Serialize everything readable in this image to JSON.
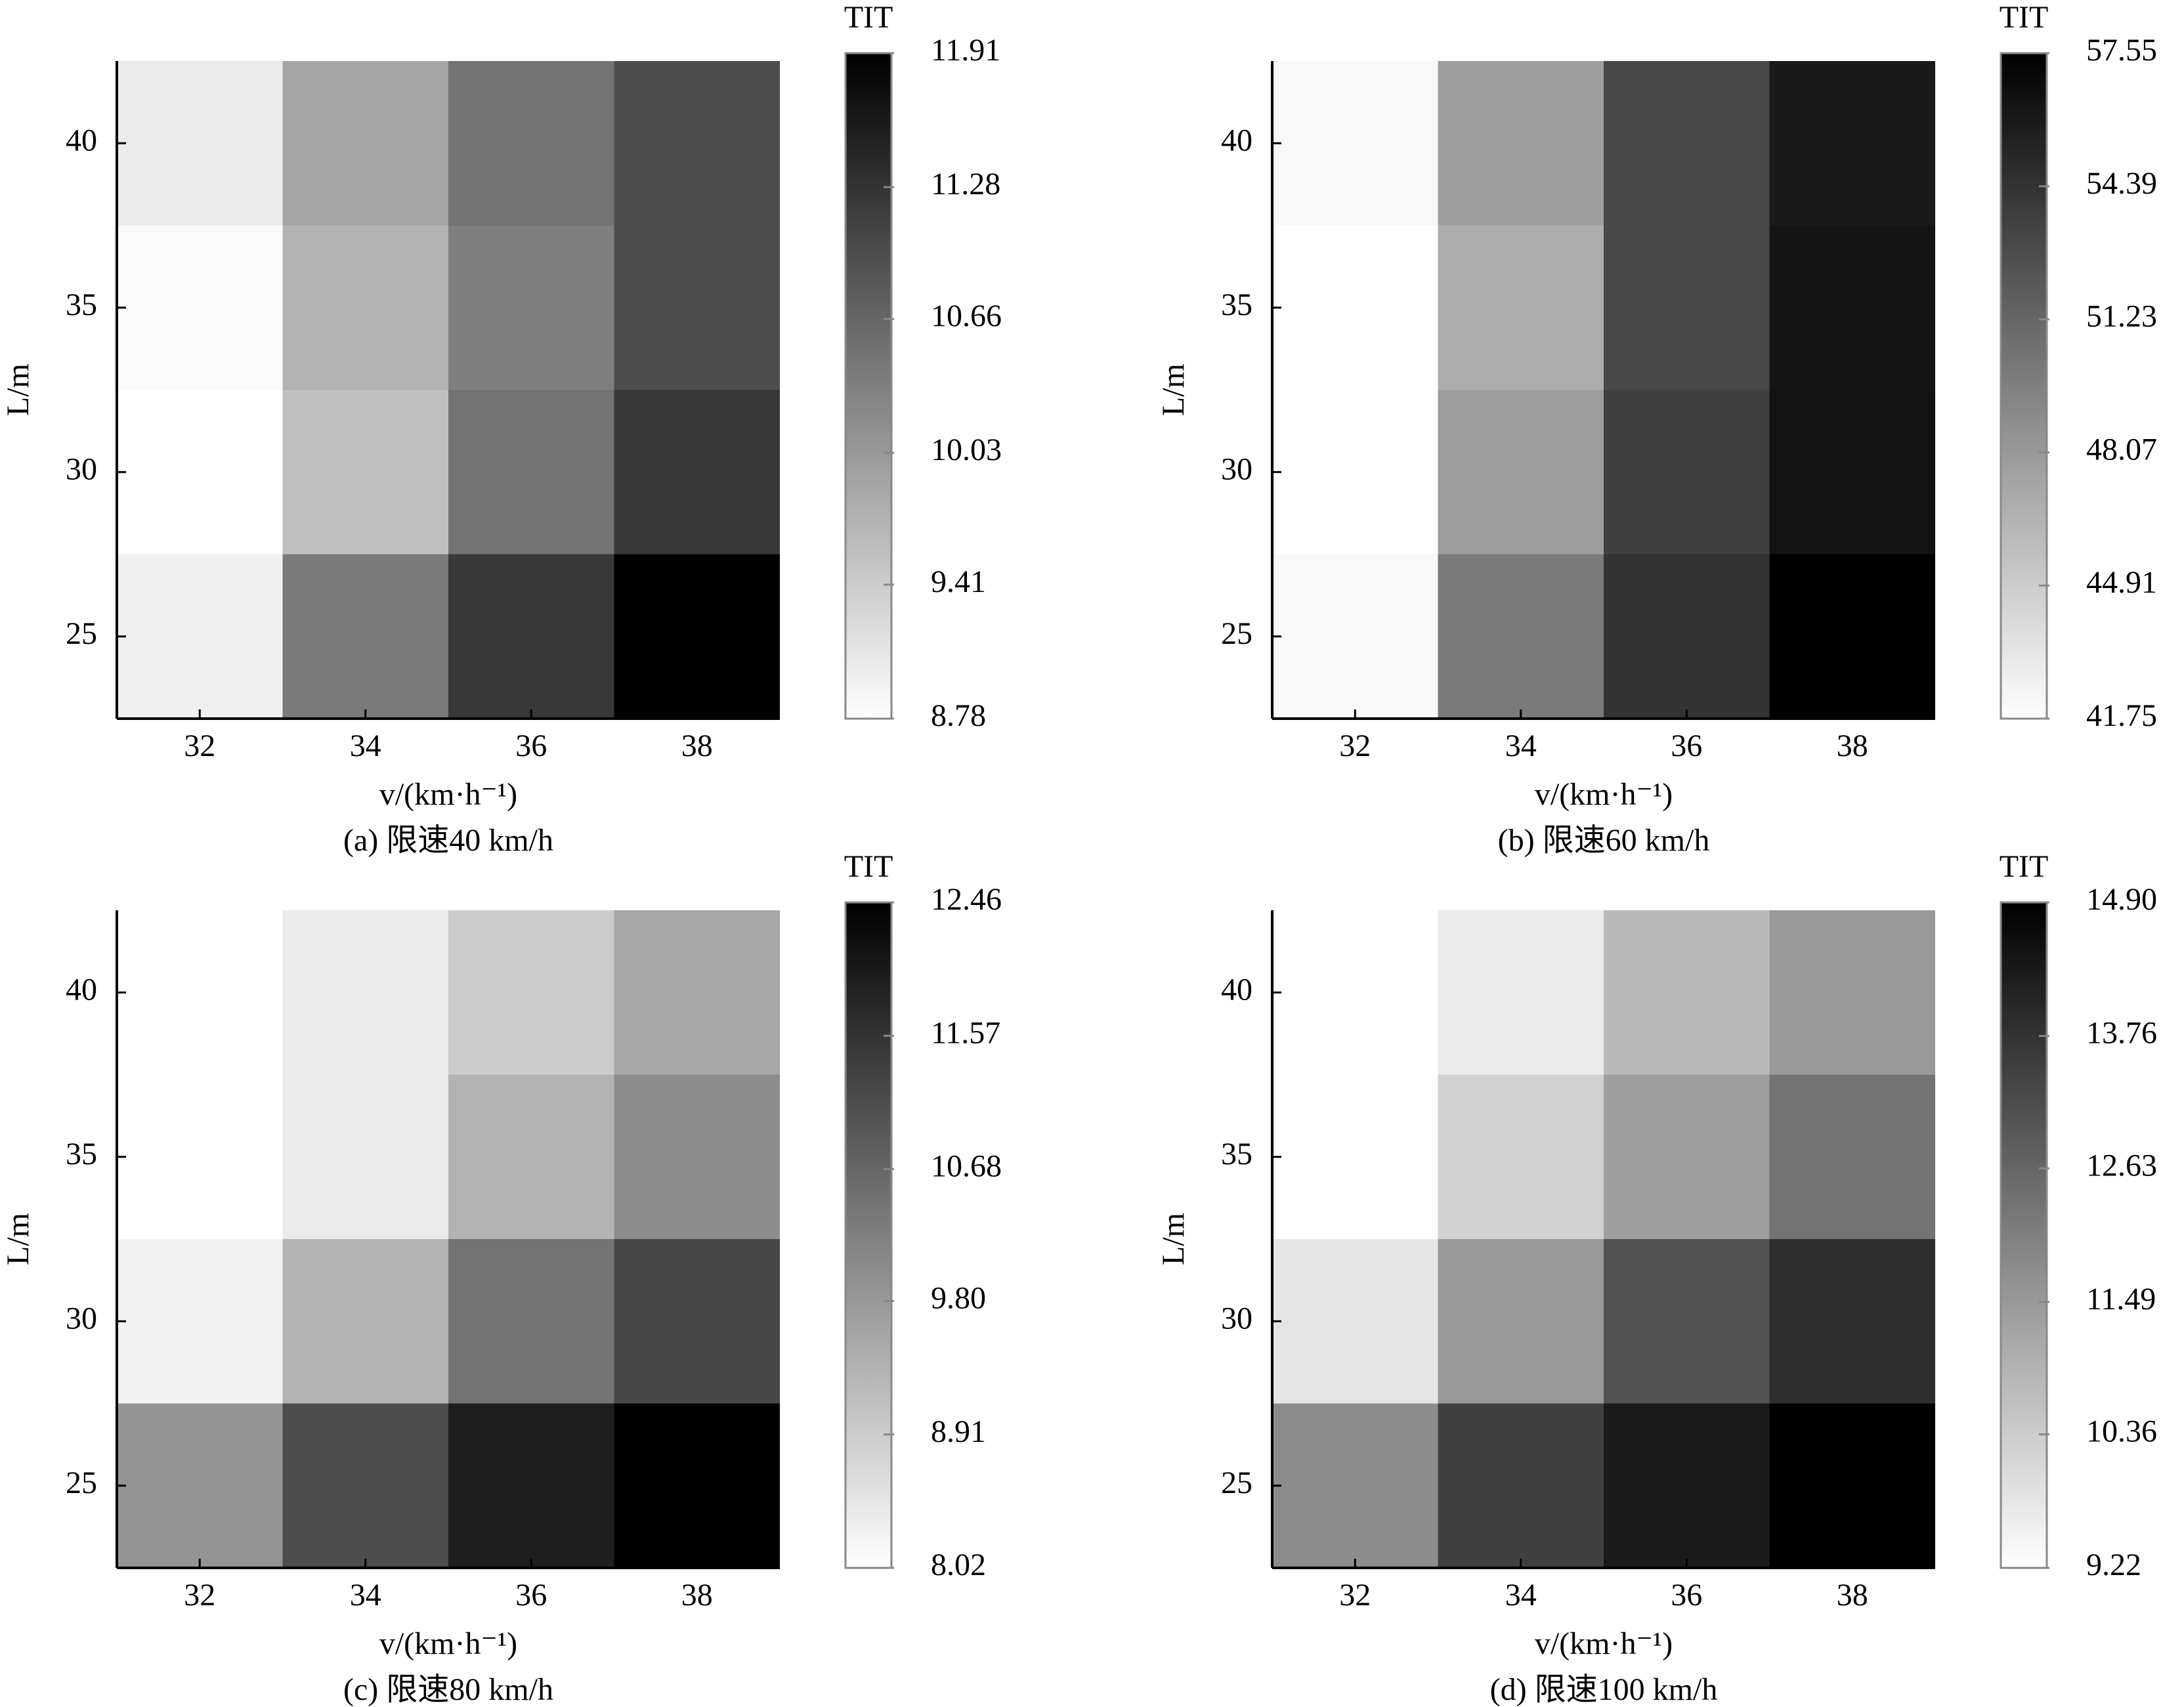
{
  "chart_data": [
    {
      "type": "heatmap",
      "caption": "(a) 限速40 km/h",
      "xlabel": "v/(km·h⁻¹)",
      "ylabel": "L/m",
      "x": [
        32,
        34,
        36,
        38
      ],
      "y": [
        25,
        30,
        35,
        40
      ],
      "z": [
        [
          8.97,
          10.41,
          11.22,
          11.91
        ],
        [
          8.78,
          9.56,
          10.5,
          11.22
        ],
        [
          8.84,
          9.72,
          10.35,
          10.97
        ],
        [
          9.03,
          9.88,
          10.5,
          10.97
        ]
      ],
      "xlim": [
        31,
        39
      ],
      "ylim": [
        22.5,
        42.5
      ],
      "xticks": [
        32,
        34,
        36,
        38
      ],
      "yticks": [
        25,
        30,
        35,
        40
      ],
      "colorbar": {
        "title": "TIT",
        "zlim": [
          8.78,
          11.91
        ],
        "zticks": [
          8.78,
          9.41,
          10.03,
          10.66,
          11.28,
          11.91
        ]
      }
    },
    {
      "type": "heatmap",
      "caption": "(b) 限速60 km/h",
      "xlabel": "v/(km·h⁻¹)",
      "ylabel": "L/m",
      "x": [
        32,
        34,
        36,
        38
      ],
      "y": [
        25,
        30,
        35,
        40
      ],
      "z": [
        [
          42.2,
          49.97,
          54.4,
          57.55
        ],
        [
          41.75,
          47.75,
          53.6,
          56.4
        ],
        [
          41.75,
          46.8,
          53.1,
          56.3
        ],
        [
          42.2,
          47.75,
          53.1,
          56.0
        ]
      ],
      "xlim": [
        31,
        39
      ],
      "ylim": [
        22.5,
        42.5
      ],
      "xticks": [
        32,
        34,
        36,
        38
      ],
      "yticks": [
        25,
        30,
        35,
        40
      ],
      "colorbar": {
        "title": "TIT",
        "zlim": [
          41.75,
          57.55
        ],
        "zticks": [
          41.75,
          44.91,
          48.07,
          51.23,
          54.39,
          57.55
        ]
      }
    },
    {
      "type": "heatmap",
      "caption": "(c) 限速80 km/h",
      "xlabel": "v/(km·h⁻¹)",
      "ylabel": "L/m",
      "x": [
        32,
        34,
        36,
        38
      ],
      "y": [
        25,
        30,
        35,
        40
      ],
      "z": [
        [
          9.88,
          11.13,
          11.93,
          12.46
        ],
        [
          8.24,
          9.35,
          10.46,
          11.22
        ],
        [
          8.02,
          8.38,
          9.35,
          10.02
        ],
        [
          8.02,
          8.38,
          8.91,
          9.57
        ]
      ],
      "xlim": [
        31,
        39
      ],
      "ylim": [
        22.5,
        42.5
      ],
      "xticks": [
        32,
        34,
        36,
        38
      ],
      "yticks": [
        25,
        30,
        35,
        40
      ],
      "colorbar": {
        "title": "TIT",
        "zlim": [
          8.02,
          12.46
        ],
        "zticks": [
          8.02,
          8.91,
          {
            "value": 9.8,
            "label": "9.80"
          },
          10.68,
          11.57,
          12.46
        ]
      }
    },
    {
      "type": "heatmap",
      "caption": "(d) 限速100 km/h",
      "xlabel": "v/(km·h⁻¹)",
      "ylabel": "L/m",
      "x": [
        32,
        34,
        36,
        38
      ],
      "y": [
        25,
        30,
        35,
        40
      ],
      "z": [
        [
          11.78,
          13.48,
          14.33,
          14.9
        ],
        [
          9.79,
          11.49,
          13.08,
          13.88
        ],
        [
          9.22,
          10.24,
          11.38,
          12.34
        ],
        [
          9.22,
          9.67,
          10.81,
          11.49
        ]
      ],
      "xlim": [
        31,
        39
      ],
      "ylim": [
        22.5,
        42.5
      ],
      "xticks": [
        32,
        34,
        36,
        38
      ],
      "yticks": [
        25,
        30,
        35,
        40
      ],
      "colorbar": {
        "title": "TIT",
        "zlim": [
          9.22,
          14.9
        ],
        "zticks": [
          9.22,
          10.36,
          11.49,
          12.63,
          13.76,
          {
            "value": 14.9,
            "label": "14.90"
          }
        ]
      }
    }
  ]
}
